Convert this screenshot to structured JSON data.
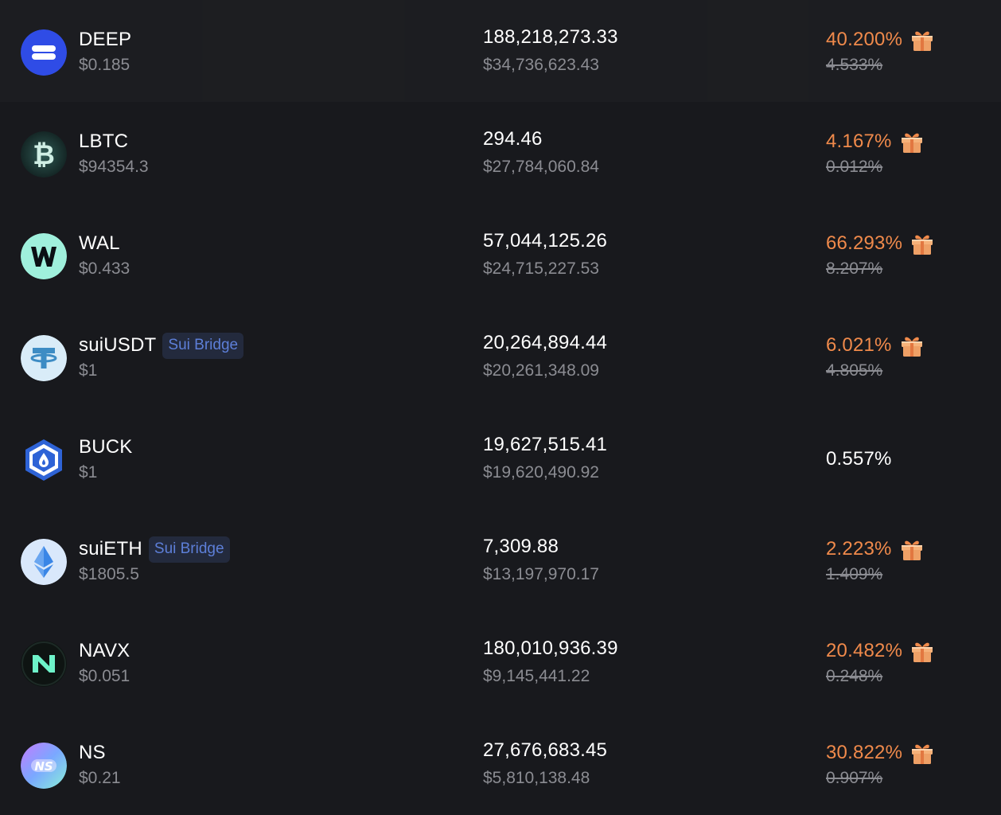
{
  "colors": {
    "background": "#18191d",
    "primary_text": "#ffffff",
    "secondary_text": "#8b8c92",
    "boosted_apr": "#f08a4b",
    "badge_text": "#5d7fd8",
    "badge_bg": "#232a3d"
  },
  "tokens": [
    {
      "symbol": "DEEP",
      "icon": "deep-icon",
      "badge": "",
      "price": "$0.185",
      "amount": "188,218,273.33",
      "value": "$34,736,623.43",
      "apr": "40.200%",
      "base_apr": "4.533%",
      "reward_icon": "gift-icon"
    },
    {
      "symbol": "LBTC",
      "icon": "lbtc-icon",
      "badge": "",
      "price": "$94354.3",
      "amount": "294.46",
      "value": "$27,784,060.84",
      "apr": "4.167%",
      "base_apr": "0.012%",
      "reward_icon": "gift-icon"
    },
    {
      "symbol": "WAL",
      "icon": "wal-icon",
      "badge": "",
      "price": "$0.433",
      "amount": "57,044,125.26",
      "value": "$24,715,227.53",
      "apr": "66.293%",
      "base_apr": "8.207%",
      "reward_icon": "gift-icon"
    },
    {
      "symbol": "suiUSDT",
      "icon": "usdt-icon",
      "badge": "Sui Bridge",
      "price": "$1",
      "amount": "20,264,894.44",
      "value": "$20,261,348.09",
      "apr": "6.021%",
      "base_apr": "4.805%",
      "reward_icon": "gift-icon"
    },
    {
      "symbol": "BUCK",
      "icon": "buck-icon",
      "badge": "",
      "price": "$1",
      "amount": "19,627,515.41",
      "value": "$19,620,490.92",
      "apr": "0.557%",
      "base_apr": "",
      "reward_icon": ""
    },
    {
      "symbol": "suiETH",
      "icon": "eth-icon",
      "badge": "Sui Bridge",
      "price": "$1805.5",
      "amount": "7,309.88",
      "value": "$13,197,970.17",
      "apr": "2.223%",
      "base_apr": "1.409%",
      "reward_icon": "gift-icon"
    },
    {
      "symbol": "NAVX",
      "icon": "navx-icon",
      "badge": "",
      "price": "$0.051",
      "amount": "180,010,936.39",
      "value": "$9,145,441.22",
      "apr": "20.482%",
      "base_apr": "0.248%",
      "reward_icon": "gift-icon"
    },
    {
      "symbol": "NS",
      "icon": "ns-icon",
      "badge": "",
      "price": "$0.21",
      "amount": "27,676,683.45",
      "value": "$5,810,138.48",
      "apr": "30.822%",
      "base_apr": "0.907%",
      "reward_icon": "gift-icon"
    }
  ]
}
